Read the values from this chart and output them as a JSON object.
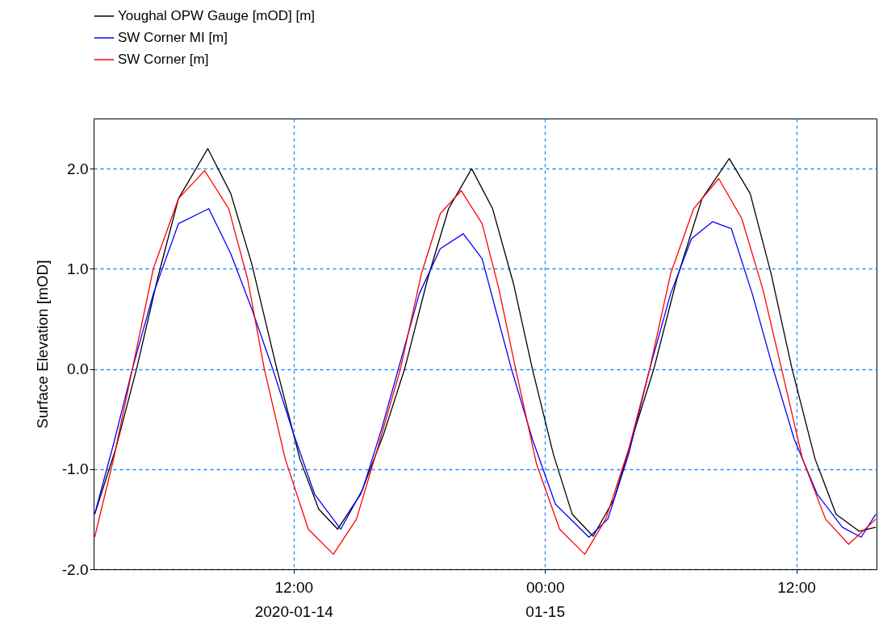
{
  "chart_data": {
    "type": "line",
    "ylabel": "Surface Elevation [mOD]",
    "xlim": [
      "2020-01-14T02:27",
      "2020-01-15T15:50"
    ],
    "ylim": [
      -2,
      2.5
    ],
    "yticks": [
      {
        "value": -2,
        "label": "-2.0"
      },
      {
        "value": -1,
        "label": "-1.0"
      },
      {
        "value": 0,
        "label": "0.0"
      },
      {
        "value": 1,
        "label": "1.0"
      },
      {
        "value": 2,
        "label": "2.0"
      }
    ],
    "xticks": [
      {
        "value": "2020-01-14T12:00",
        "label": "12:00\n2020-01-14"
      },
      {
        "value": "2020-01-15T00:00",
        "label": "00:00\n01-15"
      },
      {
        "value": "2020-01-15T12:00",
        "label": "12:00"
      }
    ],
    "grid": true,
    "legend": "top left",
    "line_style": "solid",
    "series": [
      {
        "name": "Youghal OPW Gauge [mOD] [m]",
        "color": "#000000",
        "x": [
          "2020-01-14T02:30",
          "2020-01-14T03:30",
          "2020-01-14T04:30",
          "2020-01-14T05:30",
          "2020-01-14T06:30",
          "2020-01-14T07:54",
          "2020-01-14T09:00",
          "2020-01-14T10:00",
          "2020-01-14T11:12",
          "2020-01-14T12:18",
          "2020-01-14T13:12",
          "2020-01-14T14:06",
          "2020-01-14T15:12",
          "2020-01-14T16:18",
          "2020-01-14T17:18",
          "2020-01-14T18:24",
          "2020-01-14T19:24",
          "2020-01-14T20:30",
          "2020-01-14T21:30",
          "2020-01-14T22:30",
          "2020-01-14T23:24",
          "2020-01-15T00:24",
          "2020-01-15T01:18",
          "2020-01-15T02:18",
          "2020-01-15T03:18",
          "2020-01-15T04:18",
          "2020-01-15T05:12",
          "2020-01-15T06:18",
          "2020-01-15T07:30",
          "2020-01-15T08:48",
          "2020-01-15T09:48",
          "2020-01-15T10:48",
          "2020-01-15T11:48",
          "2020-01-15T12:54",
          "2020-01-15T13:54",
          "2020-01-15T15:00",
          "2020-01-15T15:48"
        ],
        "values": [
          -1.45,
          -0.8,
          0.0,
          0.9,
          1.7,
          2.2,
          1.75,
          1.05,
          0.0,
          -0.9,
          -1.4,
          -1.6,
          -1.25,
          -0.65,
          0.0,
          0.9,
          1.6,
          2.0,
          1.6,
          0.85,
          0.0,
          -0.85,
          -1.45,
          -1.67,
          -1.3,
          -0.6,
          0.0,
          0.9,
          1.7,
          2.1,
          1.75,
          0.95,
          0.0,
          -0.9,
          -1.45,
          -1.62,
          -1.58
        ]
      },
      {
        "name": "SW Corner MI [m]",
        "color": "#0000ff",
        "x": [
          "2020-01-14T02:30",
          "2020-01-14T03:24",
          "2020-01-14T04:18",
          "2020-01-14T05:18",
          "2020-01-14T06:30",
          "2020-01-14T07:57",
          "2020-01-14T09:00",
          "2020-01-14T10:00",
          "2020-01-14T11:00",
          "2020-01-14T12:00",
          "2020-01-14T13:00",
          "2020-01-14T14:15",
          "2020-01-14T15:18",
          "2020-01-14T16:12",
          "2020-01-14T17:00",
          "2020-01-14T18:00",
          "2020-01-14T19:00",
          "2020-01-14T20:06",
          "2020-01-14T21:00",
          "2020-01-14T21:42",
          "2020-01-14T22:24",
          "2020-01-14T23:24",
          "2020-01-15T00:30",
          "2020-01-15T02:06",
          "2020-01-15T03:00",
          "2020-01-15T04:00",
          "2020-01-15T05:00",
          "2020-01-15T06:00",
          "2020-01-15T07:00",
          "2020-01-15T08:00",
          "2020-01-15T08:54",
          "2020-01-15T09:54",
          "2020-01-15T10:54",
          "2020-01-15T11:54",
          "2020-01-15T13:00",
          "2020-01-15T14:12",
          "2020-01-15T15:06",
          "2020-01-15T15:48"
        ],
        "values": [
          -1.45,
          -0.75,
          0.0,
          0.75,
          1.45,
          1.6,
          1.15,
          0.6,
          0.0,
          -0.65,
          -1.25,
          -1.6,
          -1.2,
          -0.6,
          0.0,
          0.75,
          1.2,
          1.35,
          1.1,
          0.55,
          0.0,
          -0.7,
          -1.35,
          -1.68,
          -1.5,
          -0.85,
          0.0,
          0.75,
          1.3,
          1.47,
          1.4,
          0.75,
          0.0,
          -0.7,
          -1.25,
          -1.58,
          -1.68,
          -1.45
        ]
      },
      {
        "name": "SW Corner [m]",
        "color": "#ff0000",
        "x": [
          "2020-01-14T02:30",
          "2020-01-14T03:24",
          "2020-01-14T04:18",
          "2020-01-14T05:18",
          "2020-01-14T06:30",
          "2020-01-14T07:45",
          "2020-01-14T08:54",
          "2020-01-14T09:48",
          "2020-01-14T10:36",
          "2020-01-14T11:36",
          "2020-01-14T12:42",
          "2020-01-14T13:54",
          "2020-01-14T15:00",
          "2020-01-14T16:00",
          "2020-01-14T17:06",
          "2020-01-14T18:06",
          "2020-01-14T19:00",
          "2020-01-14T20:00",
          "2020-01-14T21:00",
          "2020-01-14T21:48",
          "2020-01-14T22:36",
          "2020-01-14T23:36",
          "2020-01-15T00:42",
          "2020-01-15T01:54",
          "2020-01-15T02:54",
          "2020-01-15T04:00",
          "2020-01-15T05:00",
          "2020-01-15T06:00",
          "2020-01-15T07:06",
          "2020-01-15T08:18",
          "2020-01-15T09:24",
          "2020-01-15T10:24",
          "2020-01-15T11:18",
          "2020-01-15T12:18",
          "2020-01-15T13:24",
          "2020-01-15T14:30",
          "2020-01-15T15:48"
        ],
        "values": [
          -1.68,
          -0.9,
          0.0,
          1.0,
          1.7,
          1.98,
          1.6,
          0.9,
          0.0,
          -0.9,
          -1.6,
          -1.85,
          -1.5,
          -0.8,
          0.0,
          0.95,
          1.55,
          1.78,
          1.45,
          0.8,
          0.0,
          -0.95,
          -1.6,
          -1.85,
          -1.5,
          -0.8,
          0.0,
          0.95,
          1.6,
          1.9,
          1.5,
          0.8,
          0.0,
          -0.9,
          -1.5,
          -1.75,
          -1.5
        ]
      }
    ]
  }
}
